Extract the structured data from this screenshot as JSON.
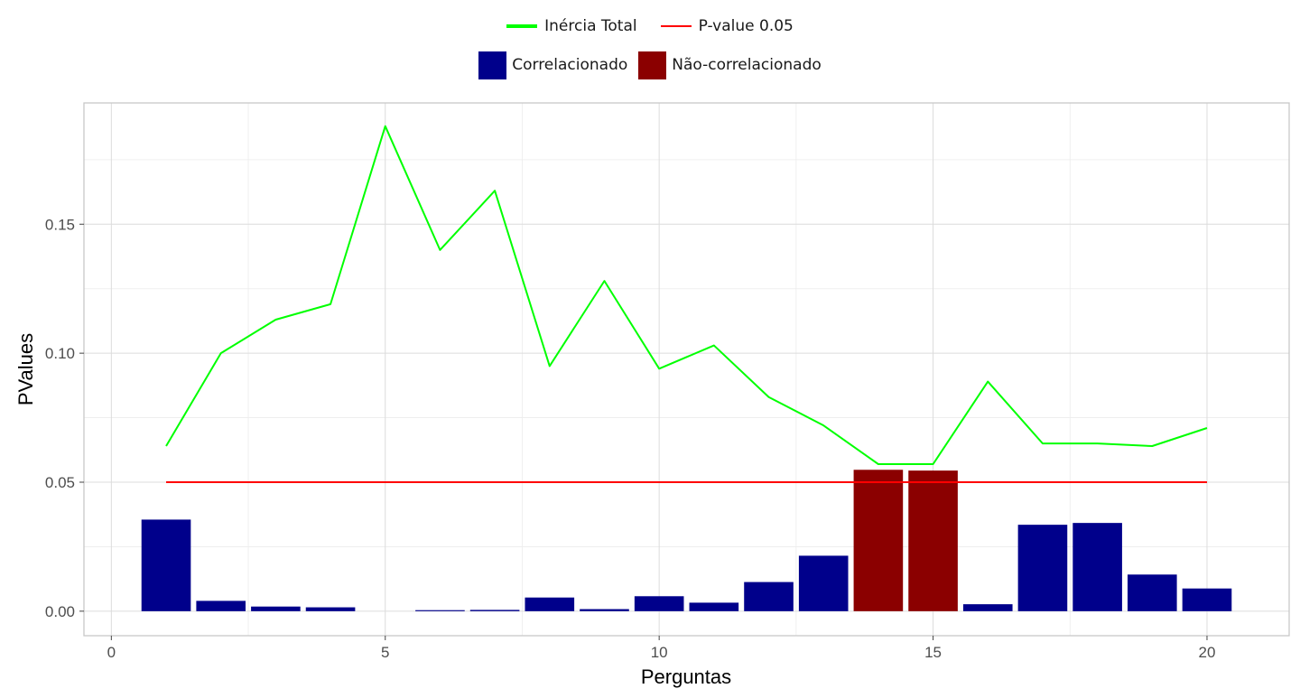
{
  "legend": {
    "lines": [
      {
        "label": "Inércia Total",
        "color": "#00ff00"
      },
      {
        "label": "P-value 0.05",
        "color": "#ff0000"
      }
    ],
    "fills": [
      {
        "label": "Correlacionado",
        "color": "#00008b"
      },
      {
        "label": "Não-correlacionado",
        "color": "#8b0000"
      }
    ]
  },
  "chart_data": {
    "type": "bar",
    "xlabel": "Perguntas",
    "ylabel": "PValues",
    "xlim": [
      -0.5,
      21.5
    ],
    "ylim": [
      -0.0095,
      0.197
    ],
    "xticks": [
      0,
      5,
      10,
      15,
      20
    ],
    "yticks": [
      0.0,
      0.05,
      0.1,
      0.15
    ],
    "ytick_labels": [
      "0.00",
      "0.05",
      "0.10",
      "0.15"
    ],
    "grid": true,
    "legend_position": "top",
    "bars": {
      "x": [
        1,
        2,
        3,
        4,
        5,
        6,
        7,
        8,
        9,
        10,
        11,
        12,
        13,
        14,
        15,
        16,
        17,
        18,
        19,
        20
      ],
      "values": [
        0.0355,
        0.004,
        0.0018,
        0.0015,
        0.0,
        0.0004,
        0.0005,
        0.0053,
        0.0008,
        0.0058,
        0.0033,
        0.0113,
        0.0215,
        0.0548,
        0.0545,
        0.0027,
        0.0335,
        0.0342,
        0.0142,
        0.0088
      ],
      "groups": [
        "Correlacionado",
        "Correlacionado",
        "Correlacionado",
        "Correlacionado",
        "Correlacionado",
        "Correlacionado",
        "Correlacionado",
        "Correlacionado",
        "Correlacionado",
        "Correlacionado",
        "Correlacionado",
        "Correlacionado",
        "Correlacionado",
        "Não-correlacionado",
        "Não-correlacionado",
        "Correlacionado",
        "Correlacionado",
        "Correlacionado",
        "Correlacionado",
        "Correlacionado"
      ]
    },
    "series": [
      {
        "name": "Inércia Total",
        "type": "line",
        "color": "#00ff00",
        "x": [
          1,
          2,
          3,
          4,
          5,
          6,
          7,
          8,
          9,
          10,
          11,
          12,
          13,
          14,
          15,
          16,
          17,
          18,
          19,
          20
        ],
        "values": [
          0.064,
          0.1,
          0.113,
          0.119,
          0.188,
          0.14,
          0.163,
          0.095,
          0.128,
          0.094,
          0.103,
          0.083,
          0.072,
          0.057,
          0.057,
          0.089,
          0.065,
          0.065,
          0.064,
          0.071
        ]
      },
      {
        "name": "P-value 0.05",
        "type": "line",
        "color": "#ff0000",
        "x": [
          1,
          20
        ],
        "values": [
          0.05,
          0.05
        ]
      }
    ]
  }
}
